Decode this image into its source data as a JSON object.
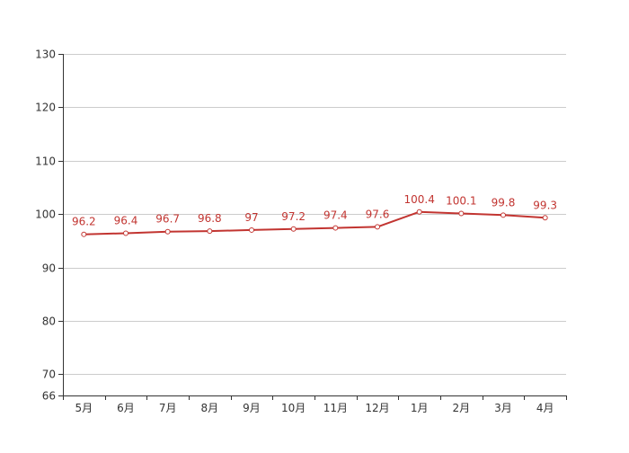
{
  "chart_data": {
    "type": "line",
    "title": "",
    "xlabel": "",
    "ylabel": "",
    "categories": [
      "5月",
      "6月",
      "7月",
      "8月",
      "9月",
      "10月",
      "11月",
      "12月",
      "1月",
      "2月",
      "3月",
      "4月"
    ],
    "series": [
      {
        "values": [
          96.2,
          96.4,
          96.7,
          96.8,
          97,
          97.2,
          97.4,
          97.6,
          100.4,
          100.1,
          99.8,
          99.3
        ],
        "labels": [
          "96.2",
          "96.4",
          "96.7",
          "96.8",
          "97",
          "97.2",
          "97.4",
          "97.6",
          "100.4",
          "100.1",
          "99.8",
          "99.3"
        ],
        "color": "#c23531"
      }
    ],
    "ylim": [
      66,
      130
    ],
    "yticks": [
      66,
      70,
      80,
      90,
      100,
      110,
      120,
      130
    ],
    "ytick_labels": [
      "66",
      "70",
      "80",
      "90",
      "100",
      "110",
      "120",
      "130"
    ],
    "grid": true,
    "legend": "none",
    "colors": {
      "line": "#c23531",
      "grid": "#cccccc",
      "axis": "#333333",
      "marker_fill": "#ffffff"
    }
  }
}
